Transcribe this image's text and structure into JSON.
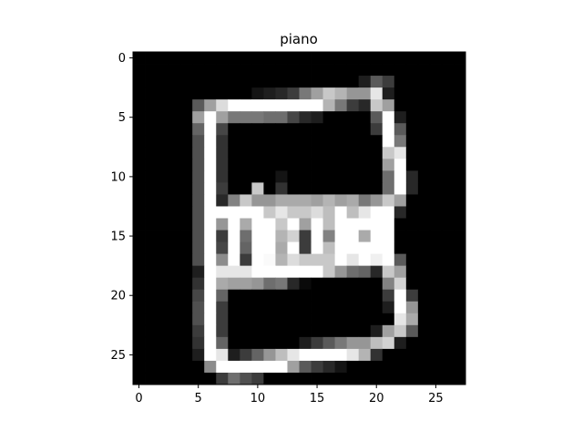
{
  "chart_data": {
    "type": "heatmap",
    "title": "piano",
    "colormap": "gray",
    "xlim": [
      -0.5,
      27.5
    ],
    "ylim": [
      27.5,
      -0.5
    ],
    "xticks": [
      0,
      5,
      10,
      15,
      20,
      25
    ],
    "yticks": [
      0,
      5,
      10,
      15,
      20,
      25
    ],
    "xticklabels": [
      "0",
      "5",
      "10",
      "15",
      "20",
      "25"
    ],
    "yticklabels": [
      "0",
      "5",
      "10",
      "15",
      "20",
      "25"
    ],
    "grid": false,
    "rows": 28,
    "cols": 28,
    "values": [
      [
        0,
        0,
        0,
        0,
        0,
        0,
        0,
        0,
        0,
        0,
        0,
        0,
        0,
        0,
        0,
        0,
        0,
        0,
        0,
        0,
        0,
        0,
        0,
        0,
        0,
        0,
        0,
        0
      ],
      [
        0,
        0,
        0,
        0,
        0,
        0,
        0,
        0,
        0,
        0,
        0,
        0,
        0,
        0,
        0,
        0,
        0,
        0,
        0,
        0,
        0,
        0,
        0,
        0,
        0,
        0,
        0,
        0
      ],
      [
        0,
        0,
        0,
        0,
        0,
        0,
        0,
        0,
        0,
        0,
        0,
        0,
        0,
        0,
        0,
        0,
        0,
        0,
        0,
        30,
        90,
        60,
        0,
        0,
        0,
        0,
        0,
        0
      ],
      [
        0,
        0,
        0,
        0,
        0,
        0,
        0,
        0,
        0,
        0,
        20,
        30,
        40,
        60,
        120,
        160,
        200,
        180,
        150,
        150,
        230,
        30,
        0,
        0,
        0,
        0,
        0,
        0
      ],
      [
        0,
        0,
        0,
        0,
        0,
        90,
        160,
        220,
        255,
        255,
        255,
        255,
        255,
        255,
        255,
        255,
        180,
        120,
        60,
        40,
        200,
        160,
        0,
        0,
        0,
        0,
        0,
        0
      ],
      [
        0,
        0,
        0,
        0,
        0,
        160,
        255,
        160,
        120,
        120,
        120,
        110,
        110,
        70,
        40,
        30,
        0,
        0,
        0,
        0,
        90,
        255,
        30,
        0,
        0,
        0,
        0,
        0
      ],
      [
        0,
        0,
        0,
        0,
        0,
        100,
        255,
        70,
        0,
        0,
        0,
        0,
        0,
        0,
        0,
        0,
        0,
        0,
        0,
        0,
        60,
        255,
        90,
        0,
        0,
        0,
        0,
        0
      ],
      [
        0,
        0,
        0,
        0,
        0,
        80,
        255,
        50,
        0,
        0,
        0,
        0,
        0,
        0,
        0,
        0,
        0,
        0,
        0,
        0,
        0,
        255,
        120,
        0,
        0,
        0,
        0,
        0
      ],
      [
        0,
        0,
        0,
        0,
        0,
        80,
        255,
        50,
        0,
        0,
        0,
        0,
        0,
        0,
        0,
        0,
        0,
        0,
        0,
        0,
        0,
        200,
        230,
        0,
        0,
        0,
        0,
        0
      ],
      [
        0,
        0,
        0,
        0,
        0,
        80,
        255,
        50,
        0,
        0,
        0,
        0,
        0,
        0,
        0,
        0,
        0,
        0,
        0,
        0,
        0,
        160,
        255,
        0,
        0,
        0,
        0,
        0
      ],
      [
        0,
        0,
        0,
        0,
        0,
        80,
        255,
        50,
        0,
        0,
        0,
        0,
        20,
        0,
        0,
        0,
        0,
        0,
        0,
        0,
        0,
        110,
        255,
        40,
        0,
        0,
        0,
        0
      ],
      [
        0,
        0,
        0,
        0,
        0,
        80,
        255,
        60,
        0,
        0,
        200,
        0,
        50,
        0,
        0,
        0,
        0,
        0,
        0,
        0,
        0,
        110,
        255,
        40,
        0,
        0,
        0,
        0
      ],
      [
        0,
        0,
        0,
        0,
        0,
        80,
        255,
        40,
        130,
        200,
        150,
        150,
        170,
        170,
        170,
        160,
        180,
        160,
        170,
        120,
        150,
        200,
        160,
        0,
        0,
        0,
        0,
        0
      ],
      [
        0,
        0,
        0,
        0,
        0,
        80,
        255,
        255,
        255,
        255,
        255,
        200,
        230,
        200,
        200,
        220,
        190,
        255,
        190,
        230,
        255,
        255,
        40,
        0,
        0,
        0,
        0,
        0
      ],
      [
        0,
        0,
        0,
        0,
        0,
        80,
        255,
        150,
        255,
        170,
        255,
        255,
        200,
        255,
        160,
        255,
        190,
        255,
        255,
        255,
        255,
        255,
        0,
        0,
        0,
        0,
        0,
        0
      ],
      [
        0,
        0,
        0,
        0,
        0,
        80,
        255,
        60,
        255,
        110,
        255,
        255,
        180,
        210,
        60,
        255,
        130,
        255,
        255,
        170,
        255,
        255,
        0,
        0,
        0,
        0,
        0,
        0
      ],
      [
        0,
        0,
        0,
        0,
        0,
        80,
        255,
        70,
        255,
        100,
        255,
        255,
        170,
        255,
        60,
        255,
        190,
        255,
        255,
        255,
        255,
        255,
        0,
        0,
        0,
        0,
        0,
        0
      ],
      [
        0,
        0,
        0,
        0,
        0,
        80,
        255,
        140,
        255,
        60,
        255,
        250,
        180,
        220,
        200,
        200,
        200,
        255,
        230,
        255,
        240,
        255,
        90,
        0,
        0,
        0,
        0,
        0
      ],
      [
        0,
        0,
        0,
        0,
        0,
        30,
        255,
        230,
        230,
        230,
        255,
        255,
        255,
        255,
        255,
        255,
        200,
        150,
        110,
        100,
        40,
        200,
        160,
        0,
        0,
        0,
        0,
        0
      ],
      [
        0,
        0,
        0,
        0,
        0,
        50,
        255,
        170,
        160,
        160,
        150,
        110,
        120,
        40,
        10,
        0,
        0,
        0,
        0,
        0,
        0,
        130,
        210,
        0,
        0,
        0,
        0,
        0
      ],
      [
        0,
        0,
        0,
        0,
        0,
        70,
        255,
        100,
        0,
        0,
        0,
        0,
        0,
        0,
        0,
        0,
        0,
        0,
        0,
        0,
        0,
        60,
        255,
        60,
        0,
        0,
        0,
        0
      ],
      [
        0,
        0,
        0,
        0,
        0,
        80,
        255,
        60,
        0,
        0,
        0,
        0,
        0,
        0,
        0,
        0,
        0,
        0,
        0,
        0,
        0,
        30,
        255,
        150,
        0,
        0,
        0,
        0
      ],
      [
        0,
        0,
        0,
        0,
        0,
        80,
        255,
        60,
        0,
        0,
        0,
        0,
        0,
        0,
        0,
        0,
        0,
        0,
        0,
        0,
        0,
        0,
        230,
        170,
        0,
        0,
        0,
        0
      ],
      [
        0,
        0,
        0,
        0,
        0,
        60,
        255,
        60,
        0,
        0,
        0,
        0,
        0,
        0,
        0,
        0,
        0,
        0,
        0,
        0,
        30,
        160,
        200,
        90,
        0,
        0,
        0,
        0
      ],
      [
        0,
        0,
        0,
        0,
        0,
        50,
        255,
        100,
        0,
        0,
        0,
        0,
        0,
        0,
        30,
        60,
        90,
        120,
        150,
        150,
        190,
        210,
        30,
        0,
        0,
        0,
        0,
        0
      ],
      [
        0,
        0,
        0,
        0,
        0,
        30,
        255,
        230,
        30,
        60,
        100,
        150,
        190,
        230,
        255,
        255,
        255,
        255,
        230,
        180,
        50,
        0,
        0,
        0,
        0,
        0,
        0,
        0
      ],
      [
        0,
        0,
        0,
        0,
        0,
        0,
        140,
        255,
        255,
        255,
        255,
        255,
        255,
        160,
        90,
        60,
        40,
        20,
        0,
        0,
        0,
        0,
        0,
        0,
        0,
        0,
        0,
        0
      ],
      [
        0,
        0,
        0,
        0,
        0,
        0,
        0,
        60,
        110,
        80,
        60,
        0,
        0,
        0,
        0,
        0,
        0,
        0,
        0,
        0,
        0,
        0,
        0,
        0,
        0,
        0,
        0,
        0
      ]
    ]
  }
}
